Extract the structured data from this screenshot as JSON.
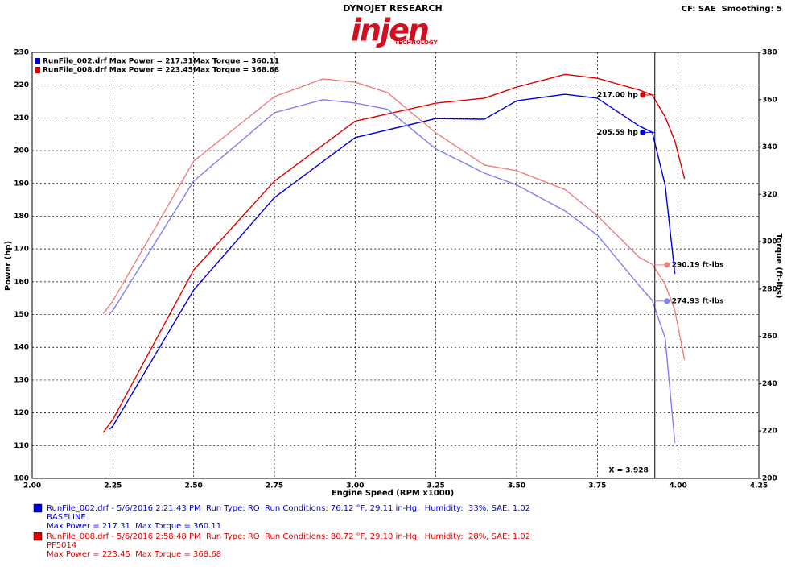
{
  "chart_data": {
    "type": "line",
    "brand": "DYNOJET RESEARCH",
    "logo": "injen",
    "logo_sub": "TECHNOLOGY",
    "settings_text": "CF: SAE  Smoothing: 5",
    "x_label": "Engine Speed (RPM x1000)",
    "y_label": "Power (hp)",
    "y2_label": "Torque (ft-lbs)",
    "xlim": [
      2.0,
      4.25
    ],
    "xticks": [
      {
        "value": 2.0,
        "label": "2.00"
      },
      {
        "value": 2.25,
        "label": "2.25"
      },
      {
        "value": 2.5,
        "label": "2.50"
      },
      {
        "value": 2.75,
        "label": "2.75"
      },
      {
        "value": 3.0,
        "label": "3.00"
      },
      {
        "value": 3.25,
        "label": "3.25"
      },
      {
        "value": 3.5,
        "label": "3.50"
      },
      {
        "value": 3.75,
        "label": "3.75"
      },
      {
        "value": 4.0,
        "label": "4.00"
      },
      {
        "value": 4.25,
        "label": "4.25"
      }
    ],
    "ylim": [
      100,
      230
    ],
    "yticks": [
      100,
      110,
      120,
      130,
      140,
      150,
      160,
      170,
      180,
      190,
      200,
      210,
      220,
      230
    ],
    "y2lim": [
      200,
      380
    ],
    "y2ticks": [
      200,
      220,
      240,
      260,
      280,
      300,
      320,
      340,
      360,
      380
    ],
    "grid": true,
    "legend": [
      {
        "color": "#0000dd",
        "power": "RunFile_002.drf Max Power = 217.31",
        "torque": "Max Torque = 360.11"
      },
      {
        "color": "#e00000",
        "power": "RunFile_008.drf Max Power = 223.45",
        "torque": "Max Torque = 368.68"
      }
    ],
    "series": [
      {
        "color": "#0000dd",
        "axis": "y",
        "x": [
          2.24,
          2.25,
          2.5,
          2.75,
          3.0,
          3.25,
          3.4,
          3.5,
          3.65,
          3.75,
          3.88,
          3.92,
          3.96,
          3.99
        ],
        "values": [
          115,
          116,
          157.5,
          185.7,
          204,
          209.8,
          209.6,
          215.2,
          217.2,
          216,
          207.5,
          205.6,
          189.4,
          162.4
        ]
      },
      {
        "color": "#e00000",
        "axis": "y",
        "x": [
          2.22,
          2.25,
          2.5,
          2.75,
          3.0,
          3.25,
          3.4,
          3.5,
          3.65,
          3.75,
          3.88,
          3.92,
          3.96,
          3.99,
          4.02
        ],
        "values": [
          114,
          118,
          163.6,
          190.7,
          209,
          214.5,
          216,
          219.4,
          223.3,
          222.1,
          218.5,
          217,
          210.3,
          203,
          191.4
        ]
      },
      {
        "color": "#8080f0",
        "axis": "y2",
        "x": [
          2.24,
          2.25,
          2.5,
          2.75,
          2.9,
          3.0,
          3.1,
          3.25,
          3.4,
          3.5,
          3.65,
          3.75,
          3.88,
          3.92,
          3.96,
          3.99
        ],
        "values": [
          269.5,
          271,
          325.6,
          354.5,
          360,
          358.6,
          356,
          339.2,
          329,
          324,
          313,
          302.8,
          281.4,
          275.2,
          259.3,
          215
        ]
      },
      {
        "color": "#f08080",
        "axis": "y2",
        "x": [
          2.22,
          2.25,
          2.5,
          2.75,
          2.9,
          3.0,
          3.1,
          3.25,
          3.4,
          3.5,
          3.65,
          3.75,
          3.88,
          3.92,
          3.96,
          3.99,
          4.02
        ],
        "values": [
          269.5,
          275,
          334,
          361.3,
          368.8,
          367.4,
          363,
          346,
          332.4,
          330,
          322,
          311,
          293.3,
          290.5,
          282,
          271,
          250
        ]
      }
    ],
    "cursor": {
      "value": 3.928,
      "label": "X = 3.928"
    },
    "readouts": [
      {
        "label": "217.00 hp",
        "value": 217.0,
        "axis": "y",
        "color": "#e00000",
        "side": "left"
      },
      {
        "label": "205.59 hp",
        "value": 205.59,
        "axis": "y",
        "color": "#0000dd",
        "side": "left"
      },
      {
        "label": "290.19 ft-lbs",
        "value": 290.19,
        "axis": "y2",
        "color": "#f08080",
        "side": "right"
      },
      {
        "label": "274.93 ft-lbs",
        "value": 274.93,
        "axis": "y2",
        "color": "#8080f0",
        "side": "right"
      }
    ],
    "runs": [
      {
        "color": "#0000dd",
        "info": "RunFile_002.drf - 5/6/2016 2:21:43 PM  Run Type: RO  Run Conditions: 76.12 °F, 29.11 in-Hg,  Humidity:  33%, SAE: 1.02",
        "name": "BASELINE",
        "summary": "Max Power = 217.31  Max Torque = 360.11"
      },
      {
        "color": "#e00000",
        "info": "RunFile_008.drf - 5/6/2016 2:58:48 PM  Run Type: RO  Run Conditions: 80.72 °F, 29.10 in-Hg,  Humidity:  28%, SAE: 1.02",
        "name": "PF5014",
        "summary": "Max Power = 223.45  Max Torque = 368.68"
      }
    ]
  }
}
